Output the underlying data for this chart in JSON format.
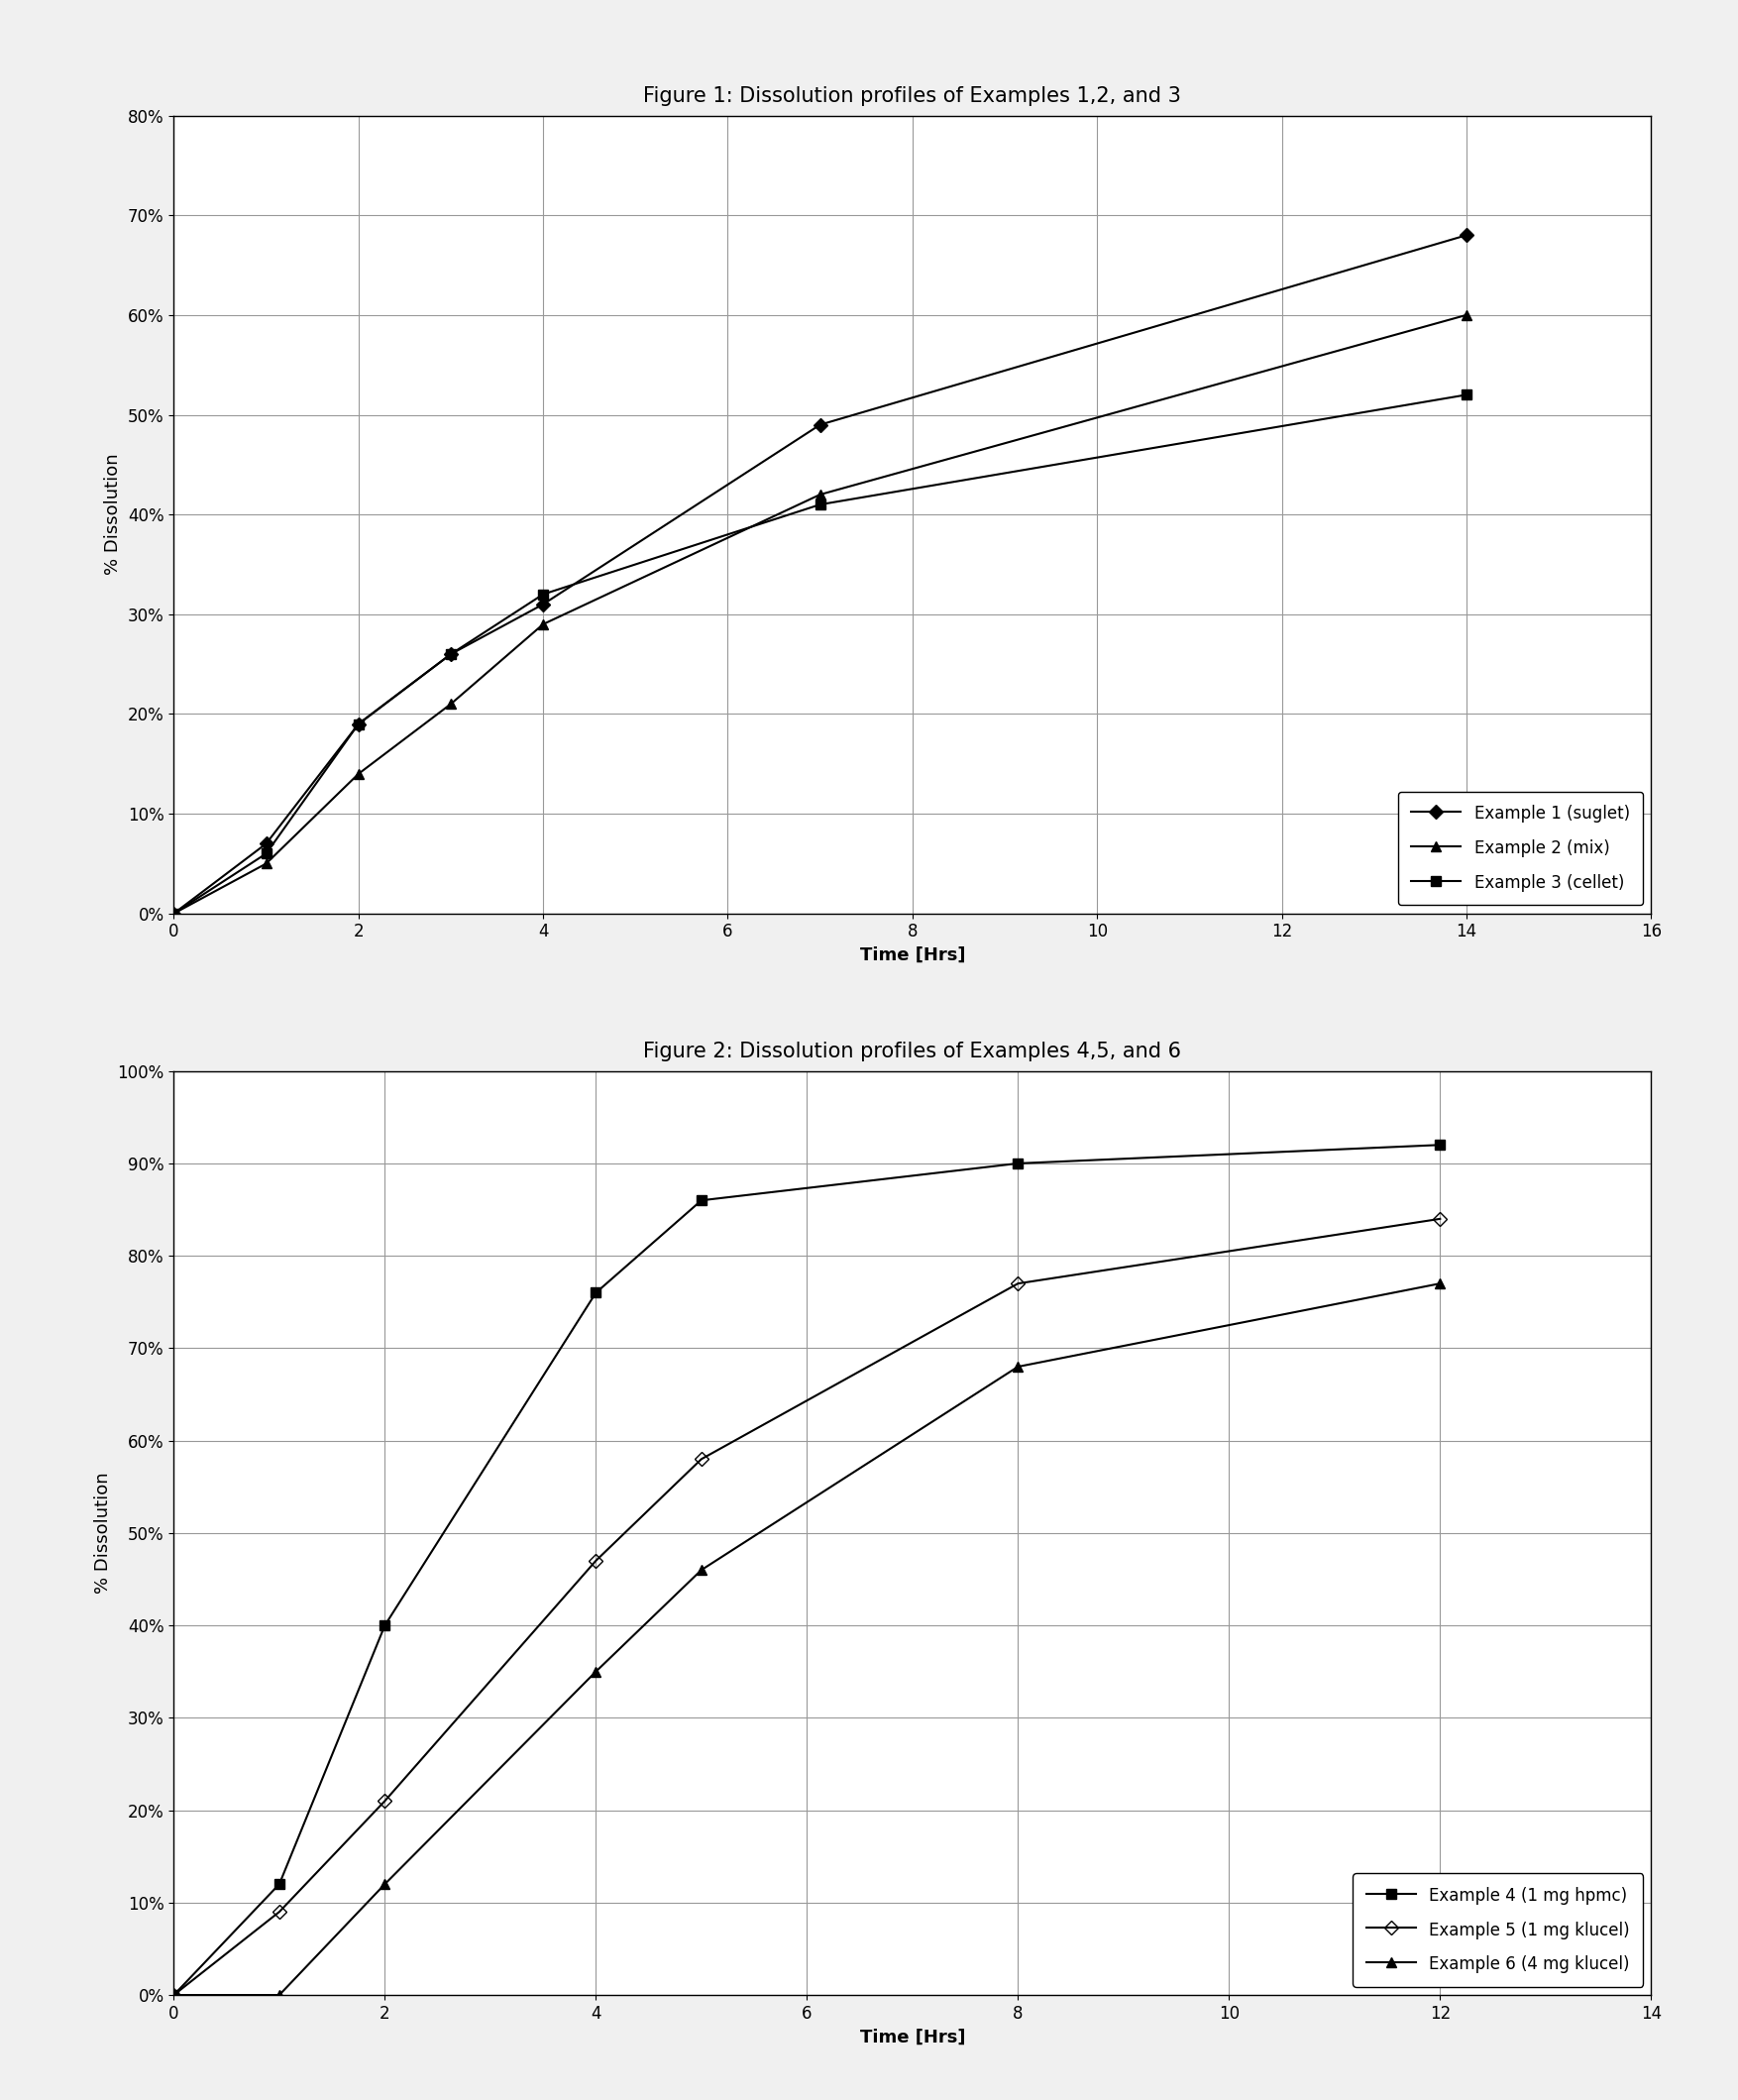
{
  "fig1": {
    "title": "Figure 1: Dissolution profiles of Examples 1,2, and 3",
    "xlabel": "Time [Hrs]",
    "ylabel": "% Dissolution",
    "xlim": [
      0,
      16
    ],
    "ylim": [
      0,
      0.8
    ],
    "xticks": [
      0,
      2,
      4,
      6,
      8,
      10,
      12,
      14,
      16
    ],
    "yticks": [
      0.0,
      0.1,
      0.2,
      0.3,
      0.4,
      0.5,
      0.6,
      0.7,
      0.8
    ],
    "series": [
      {
        "label": "Example 1 (suglet)",
        "x": [
          0,
          1,
          2,
          3,
          4,
          7,
          14
        ],
        "y": [
          0,
          0.07,
          0.19,
          0.26,
          0.31,
          0.49,
          0.68
        ],
        "marker": "D",
        "markersize": 7,
        "color": "#000000",
        "linewidth": 1.5,
        "fillstyle": "full"
      },
      {
        "label": "Example 2 (mix)",
        "x": [
          0,
          1,
          2,
          3,
          4,
          7,
          14
        ],
        "y": [
          0,
          0.05,
          0.14,
          0.21,
          0.29,
          0.42,
          0.6
        ],
        "marker": "^",
        "markersize": 7,
        "color": "#000000",
        "linewidth": 1.5,
        "fillstyle": "full"
      },
      {
        "label": "Example 3 (cellet)",
        "x": [
          0,
          1,
          2,
          3,
          4,
          7,
          14
        ],
        "y": [
          0,
          0.06,
          0.19,
          0.26,
          0.32,
          0.41,
          0.52
        ],
        "marker": "s",
        "markersize": 7,
        "color": "#000000",
        "linewidth": 1.5,
        "fillstyle": "full"
      }
    ]
  },
  "fig2": {
    "title": "Figure 2: Dissolution profiles of Examples 4,5, and 6",
    "xlabel": "Time [Hrs]",
    "ylabel": "% Dissolution",
    "xlim": [
      0,
      14
    ],
    "ylim": [
      0,
      1.0
    ],
    "xticks": [
      0,
      2,
      4,
      6,
      8,
      10,
      12,
      14
    ],
    "yticks": [
      0.0,
      0.1,
      0.2,
      0.3,
      0.4,
      0.5,
      0.6,
      0.7,
      0.8,
      0.9,
      1.0
    ],
    "series": [
      {
        "label": "Example 4 (1 mg hpmc)",
        "x": [
          0,
          1,
          2,
          4,
          5,
          8,
          12
        ],
        "y": [
          0,
          0.12,
          0.4,
          0.76,
          0.86,
          0.9,
          0.92
        ],
        "marker": "s",
        "markersize": 7,
        "color": "#000000",
        "linewidth": 1.5,
        "fillstyle": "full"
      },
      {
        "label": "Example 5 (1 mg klucel)",
        "x": [
          0,
          1,
          2,
          4,
          5,
          8,
          12
        ],
        "y": [
          0,
          0.09,
          0.21,
          0.47,
          0.58,
          0.77,
          0.84
        ],
        "marker": "D",
        "markersize": 7,
        "color": "#000000",
        "linewidth": 1.5,
        "fillstyle": "none"
      },
      {
        "label": "Example 6 (4 mg klucel)",
        "x": [
          0,
          1,
          2,
          4,
          5,
          8,
          12
        ],
        "y": [
          0,
          0.0,
          0.12,
          0.35,
          0.46,
          0.68,
          0.77
        ],
        "marker": "^",
        "markersize": 7,
        "color": "#000000",
        "linewidth": 1.5,
        "fillstyle": "full"
      }
    ]
  },
  "background_color": "#ffffff",
  "page_bg": "#f0f0f0",
  "title_fontsize": 15,
  "label_fontsize": 13,
  "tick_fontsize": 12,
  "legend_fontsize": 12
}
